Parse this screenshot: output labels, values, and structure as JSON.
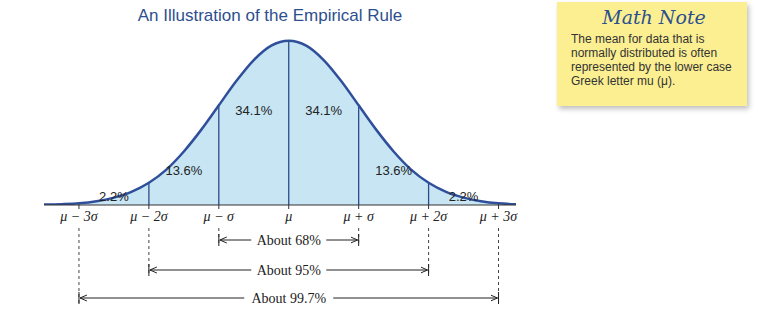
{
  "chart_data": {
    "type": "area",
    "title": "An Illustration of the Empirical Rule",
    "x": [
      -3.5,
      -3.25,
      -3,
      -2.75,
      -2.5,
      -2.25,
      -2,
      -1.75,
      -1.5,
      -1.25,
      -1,
      -0.75,
      -0.5,
      -0.25,
      0,
      0.25,
      0.5,
      0.75,
      1,
      1.25,
      1.5,
      1.75,
      2,
      2.25,
      2.5,
      2.75,
      3,
      3.25
    ],
    "values": [
      0.001,
      0.002,
      0.004,
      0.009,
      0.018,
      0.032,
      0.054,
      0.086,
      0.13,
      0.183,
      0.242,
      0.301,
      0.352,
      0.387,
      0.399,
      0.387,
      0.352,
      0.301,
      0.242,
      0.183,
      0.13,
      0.086,
      0.054,
      0.032,
      0.018,
      0.009,
      0.004,
      0.002
    ],
    "color": "#2f4f9a",
    "xlim": [
      -3.5,
      3.25
    ],
    "ylim": [
      0,
      0.42
    ],
    "xticks": [
      {
        "value": -3,
        "label": "μ − 3σ"
      },
      {
        "value": -2,
        "label": "μ − 2σ"
      },
      {
        "value": -1,
        "label": "μ − σ"
      },
      {
        "value": 0,
        "label": "μ"
      },
      {
        "value": 1,
        "label": "μ + σ"
      },
      {
        "value": 2,
        "label": "μ + 2σ"
      },
      {
        "value": 3,
        "label": "μ + 3σ"
      }
    ],
    "tick_labels": "x",
    "grid": false,
    "regions": {
      "bounds": [
        -3,
        -2,
        -1,
        0,
        1,
        2,
        3
      ],
      "values": [
        2.2,
        13.6,
        34.1,
        34.1,
        13.6,
        2.2
      ],
      "value_labels": [
        "2.2%",
        "13.6%",
        "34.1%",
        "34.1%",
        "13.6%",
        "2.2%"
      ]
    },
    "brackets": [
      {
        "from": -1,
        "to": 1,
        "label": "About 68%"
      },
      {
        "from": -2,
        "to": 2,
        "label": "About 95%"
      },
      {
        "from": -3,
        "to": 3,
        "label": "About 99.7%"
      }
    ],
    "note": {
      "title": "Math Note",
      "text": "The mean for data that is normally distributed is often represented by the lower case Greek letter mu (μ)."
    }
  }
}
